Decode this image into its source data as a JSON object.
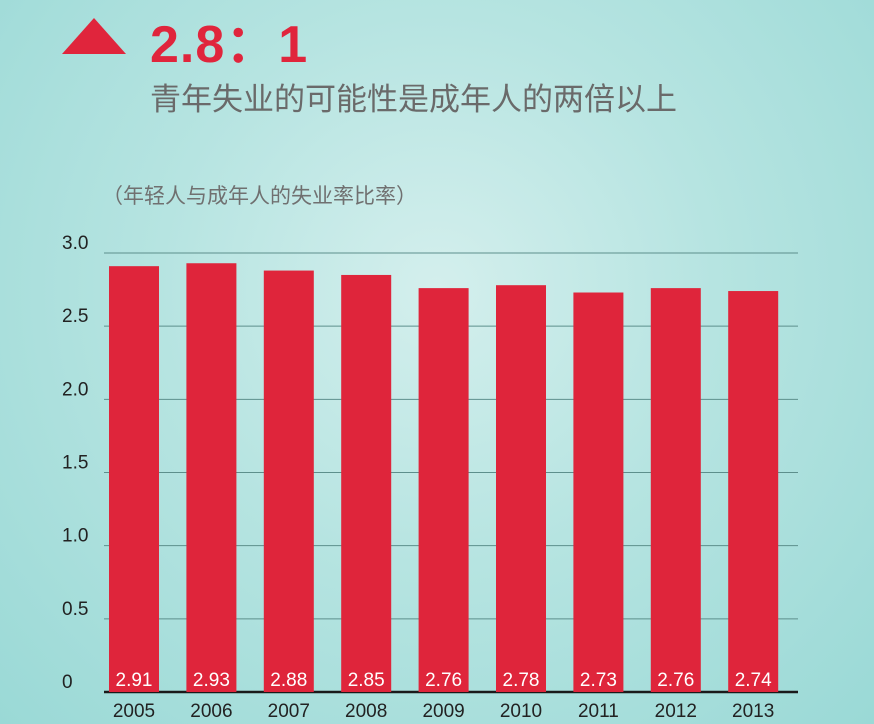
{
  "header": {
    "headline": "2.8：1",
    "subtitle": "青年失业的可能性是成年人的两倍以上"
  },
  "colors": {
    "accent": "#e0253c",
    "bar": "#df253b",
    "gridline": "#5d8f8c",
    "baseline": "#1a1a1a"
  },
  "chart_data": {
    "type": "bar",
    "title": "（年轻人与成年人的失业率比率）",
    "categories": [
      "2005",
      "2006",
      "2007",
      "2008",
      "2009",
      "2010",
      "2011",
      "2012",
      "2013"
    ],
    "values": [
      2.91,
      2.93,
      2.88,
      2.85,
      2.76,
      2.78,
      2.73,
      2.76,
      2.74
    ],
    "value_labels": [
      "2.91",
      "2.93",
      "2.88",
      "2.85",
      "2.76",
      "2.78",
      "2.73",
      "2.76",
      "2.74"
    ],
    "yticks": [
      0,
      0.5,
      1.0,
      1.5,
      2.0,
      2.5,
      3.0
    ],
    "ytick_labels": [
      "0",
      "0.5",
      "1.0",
      "1.5",
      "2.0",
      "2.5",
      "3.0"
    ],
    "ylim": [
      0,
      3.0
    ],
    "grid": true,
    "legend": false
  }
}
